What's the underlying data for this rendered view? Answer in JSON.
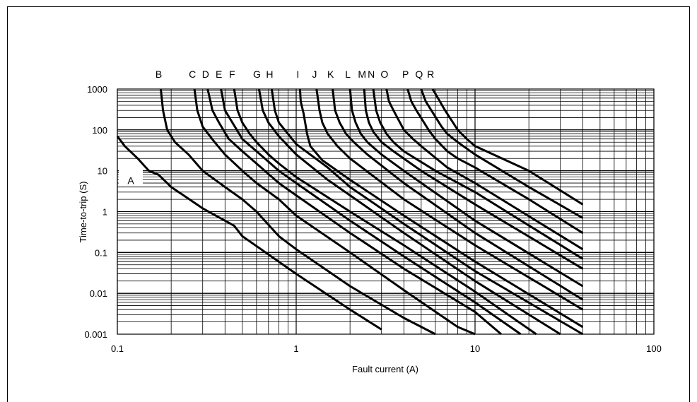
{
  "chart_data": {
    "type": "line",
    "title": "",
    "xlabel": "Fault current (A)",
    "ylabel": "Time-to-trip (S)",
    "x_scale": "log",
    "y_scale": "log",
    "xlim": [
      0.1,
      100
    ],
    "ylim": [
      0.001,
      1000
    ],
    "grid": true,
    "x_ticks": [
      "0.1",
      "1",
      "10",
      "100"
    ],
    "y_ticks": [
      "0.001",
      "0.01",
      "0.1",
      "1",
      "10",
      "100",
      "1000"
    ],
    "series": [
      {
        "name": "A",
        "label_position": "inside-left",
        "points": [
          [
            0.1,
            70
          ],
          [
            0.11,
            40
          ],
          [
            0.13,
            20
          ],
          [
            0.15,
            10
          ],
          [
            0.17,
            8
          ],
          [
            0.2,
            4
          ],
          [
            0.3,
            1.2
          ],
          [
            0.4,
            0.6
          ],
          [
            0.45,
            0.45
          ],
          [
            0.5,
            0.25
          ],
          [
            1,
            0.03
          ],
          [
            2,
            0.004
          ],
          [
            3,
            0.0013
          ]
        ]
      },
      {
        "name": "B",
        "points": [
          [
            0.175,
            1000
          ],
          [
            0.18,
            300
          ],
          [
            0.19,
            100
          ],
          [
            0.21,
            50
          ],
          [
            0.25,
            25
          ],
          [
            0.3,
            10
          ],
          [
            0.4,
            4
          ],
          [
            0.5,
            2
          ],
          [
            0.6,
            1
          ],
          [
            0.8,
            0.25
          ],
          [
            1,
            0.12
          ],
          [
            2,
            0.015
          ],
          [
            4,
            0.0025
          ],
          [
            6,
            0.001
          ]
        ]
      },
      {
        "name": "C",
        "points": [
          [
            0.27,
            1000
          ],
          [
            0.28,
            300
          ],
          [
            0.3,
            120
          ],
          [
            0.35,
            50
          ],
          [
            0.4,
            25
          ],
          [
            0.5,
            10
          ],
          [
            0.6,
            5
          ],
          [
            0.8,
            2
          ],
          [
            1,
            0.8
          ],
          [
            2,
            0.1
          ],
          [
            4,
            0.012
          ],
          [
            8,
            0.0015
          ],
          [
            10,
            0.001
          ]
        ]
      },
      {
        "name": "D",
        "points": [
          [
            0.32,
            1000
          ],
          [
            0.34,
            300
          ],
          [
            0.37,
            150
          ],
          [
            0.42,
            60
          ],
          [
            0.5,
            30
          ],
          [
            0.6,
            15
          ],
          [
            0.8,
            5
          ],
          [
            1,
            2.5
          ],
          [
            2,
            0.3
          ],
          [
            4,
            0.04
          ],
          [
            10,
            0.0035
          ],
          [
            14,
            0.001
          ]
        ]
      },
      {
        "name": "E",
        "points": [
          [
            0.38,
            1000
          ],
          [
            0.4,
            300
          ],
          [
            0.44,
            150
          ],
          [
            0.5,
            60
          ],
          [
            0.6,
            30
          ],
          [
            0.8,
            10
          ],
          [
            1,
            5
          ],
          [
            2,
            0.6
          ],
          [
            4,
            0.08
          ],
          [
            10,
            0.006
          ],
          [
            18,
            0.001
          ]
        ]
      },
      {
        "name": "F",
        "points": [
          [
            0.45,
            1000
          ],
          [
            0.47,
            300
          ],
          [
            0.5,
            150
          ],
          [
            0.55,
            80
          ],
          [
            0.6,
            50
          ],
          [
            0.7,
            25
          ],
          [
            0.8,
            15
          ],
          [
            1,
            7
          ],
          [
            2,
            1
          ],
          [
            4,
            0.15
          ],
          [
            10,
            0.011
          ],
          [
            22,
            0.001
          ]
        ]
      },
      {
        "name": "G",
        "points": [
          [
            0.62,
            1000
          ],
          [
            0.65,
            300
          ],
          [
            0.7,
            150
          ],
          [
            0.8,
            70
          ],
          [
            1,
            25
          ],
          [
            1.5,
            6
          ],
          [
            2,
            2.5
          ],
          [
            4,
            0.3
          ],
          [
            10,
            0.02
          ],
          [
            30,
            0.001
          ]
        ]
      },
      {
        "name": "H",
        "points": [
          [
            0.73,
            1000
          ],
          [
            0.76,
            300
          ],
          [
            0.8,
            150
          ],
          [
            0.9,
            80
          ],
          [
            1,
            45
          ],
          [
            1.5,
            12
          ],
          [
            2,
            4
          ],
          [
            4,
            0.5
          ],
          [
            10,
            0.035
          ],
          [
            40,
            0.001
          ]
        ]
      },
      {
        "name": "I",
        "points": [
          [
            1.05,
            1000
          ],
          [
            1.06,
            500
          ],
          [
            1.1,
            250
          ],
          [
            1.15,
            80
          ],
          [
            1.2,
            40
          ],
          [
            1.4,
            18
          ],
          [
            2,
            6
          ],
          [
            4,
            0.8
          ],
          [
            10,
            0.06
          ],
          [
            40,
            0.0015
          ]
        ]
      },
      {
        "name": "J",
        "points": [
          [
            1.3,
            1000
          ],
          [
            1.35,
            300
          ],
          [
            1.4,
            150
          ],
          [
            1.5,
            80
          ],
          [
            1.7,
            40
          ],
          [
            2,
            20
          ],
          [
            4,
            2
          ],
          [
            10,
            0.15
          ],
          [
            40,
            0.004
          ]
        ]
      },
      {
        "name": "K",
        "points": [
          [
            1.6,
            1000
          ],
          [
            1.65,
            300
          ],
          [
            1.75,
            150
          ],
          [
            1.9,
            80
          ],
          [
            2.1,
            50
          ],
          [
            2.5,
            25
          ],
          [
            4,
            5
          ],
          [
            10,
            0.3
          ],
          [
            40,
            0.007
          ]
        ]
      },
      {
        "name": "L",
        "points": [
          [
            2.0,
            1000
          ],
          [
            2.05,
            300
          ],
          [
            2.15,
            150
          ],
          [
            2.3,
            80
          ],
          [
            2.5,
            50
          ],
          [
            3,
            25
          ],
          [
            4,
            10
          ],
          [
            10,
            0.6
          ],
          [
            40,
            0.015
          ]
        ]
      },
      {
        "name": "M",
        "points": [
          [
            2.4,
            1000
          ],
          [
            2.45,
            300
          ],
          [
            2.55,
            150
          ],
          [
            2.7,
            90
          ],
          [
            3,
            50
          ],
          [
            3.5,
            30
          ],
          [
            5,
            10
          ],
          [
            10,
            1.5
          ],
          [
            40,
            0.04
          ]
        ]
      },
      {
        "name": "N",
        "points": [
          [
            2.7,
            1000
          ],
          [
            2.8,
            300
          ],
          [
            2.95,
            150
          ],
          [
            3.2,
            80
          ],
          [
            3.5,
            50
          ],
          [
            4,
            30
          ],
          [
            6,
            10
          ],
          [
            10,
            3
          ],
          [
            40,
            0.07
          ]
        ]
      },
      {
        "name": "O",
        "points": [
          [
            3.2,
            1000
          ],
          [
            3.3,
            500
          ],
          [
            3.5,
            300
          ],
          [
            4,
            100
          ],
          [
            4.5,
            60
          ],
          [
            5,
            40
          ],
          [
            7,
            12
          ],
          [
            10,
            5
          ],
          [
            40,
            0.12
          ]
        ]
      },
      {
        "name": "P",
        "points": [
          [
            4.2,
            1000
          ],
          [
            4.4,
            500
          ],
          [
            4.7,
            300
          ],
          [
            5.5,
            100
          ],
          [
            6,
            60
          ],
          [
            7,
            30
          ],
          [
            8,
            20
          ],
          [
            10,
            12
          ],
          [
            20,
            2
          ],
          [
            40,
            0.3
          ]
        ]
      },
      {
        "name": "Q",
        "points": [
          [
            5.0,
            1000
          ],
          [
            5.3,
            500
          ],
          [
            5.7,
            300
          ],
          [
            6.5,
            120
          ],
          [
            7,
            80
          ],
          [
            8,
            50
          ],
          [
            10,
            25
          ],
          [
            20,
            4
          ],
          [
            40,
            0.7
          ]
        ]
      },
      {
        "name": "R",
        "points": [
          [
            5.8,
            1000
          ],
          [
            6.2,
            600
          ],
          [
            6.8,
            300
          ],
          [
            8,
            100
          ],
          [
            9,
            60
          ],
          [
            10,
            40
          ],
          [
            20,
            10
          ],
          [
            40,
            1.5
          ]
        ]
      }
    ]
  }
}
